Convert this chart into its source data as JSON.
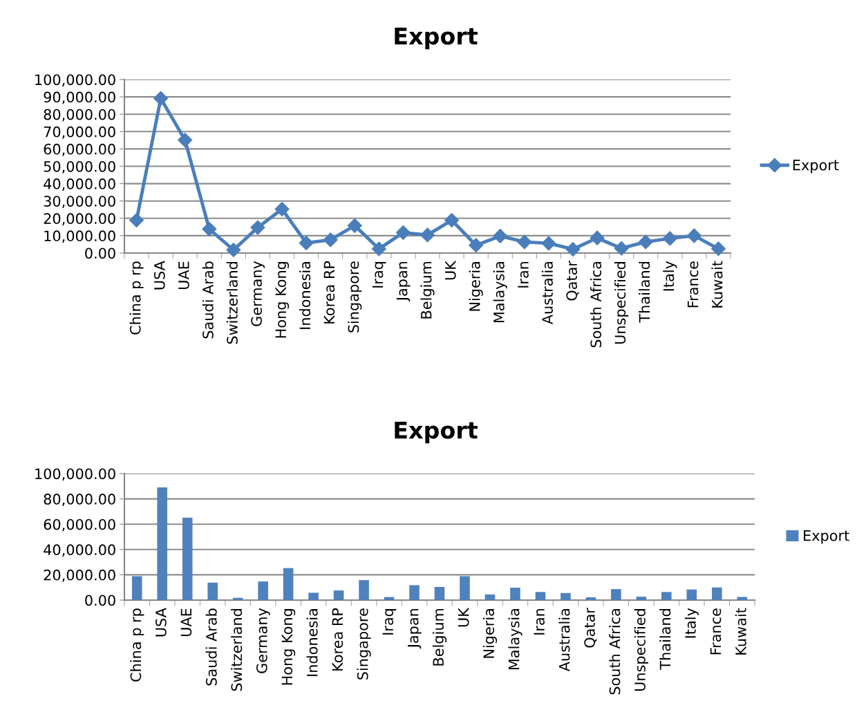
{
  "chart_data": [
    {
      "type": "line",
      "title": "Export",
      "categories": [
        "China p rp",
        "USA",
        "UAE",
        "Saudi Arab",
        "Switzerland",
        "Germany",
        "Hong Kong",
        "Indonesia",
        "Korea RP",
        "Singapore",
        "Iraq",
        "Japan",
        "Belgium",
        "UK",
        "Nigeria",
        "Malaysia",
        "Iran",
        "Australia",
        "Qatar",
        "South Africa",
        "Unspecified",
        "Thailand",
        "Italy",
        "France",
        "Kuwait"
      ],
      "series": [
        {
          "name": "Export",
          "color": "#4a7ebb",
          "values": [
            18900,
            89100,
            65100,
            13800,
            1800,
            14700,
            25300,
            5800,
            7600,
            15800,
            2400,
            11800,
            10400,
            18900,
            4500,
            9800,
            6400,
            5600,
            2200,
            8700,
            2700,
            6400,
            8400,
            10000,
            2500
          ]
        }
      ],
      "ylim": [
        0,
        100000
      ],
      "yticks": [
        {
          "value": 0,
          "label": "0.00"
        },
        {
          "value": 10000,
          "label": "10,000.00"
        },
        {
          "value": 20000,
          "label": "20,000.00"
        },
        {
          "value": 30000,
          "label": "30,000.00"
        },
        {
          "value": 40000,
          "label": "40,000.00"
        },
        {
          "value": 50000,
          "label": "50,000.00"
        },
        {
          "value": 60000,
          "label": "60,000.00"
        },
        {
          "value": 70000,
          "label": "70,000.00"
        },
        {
          "value": 80000,
          "label": "80,000.00"
        },
        {
          "value": 90000,
          "label": "90,000.00"
        },
        {
          "value": 100000,
          "label": "100,000.00"
        }
      ],
      "grid": "y",
      "legend": "right",
      "marker": "diamond",
      "line_style": "solid"
    },
    {
      "type": "bar",
      "title": "Export",
      "categories": [
        "China p rp",
        "USA",
        "UAE",
        "Saudi Arab",
        "Switzerland",
        "Germany",
        "Hong Kong",
        "Indonesia",
        "Korea RP",
        "Singapore",
        "Iraq",
        "Japan",
        "Belgium",
        "UK",
        "Nigeria",
        "Malaysia",
        "Iran",
        "Australia",
        "Qatar",
        "South Africa",
        "Unspecified",
        "Thailand",
        "Italy",
        "France",
        "Kuwait"
      ],
      "series": [
        {
          "name": "Export",
          "color": "#4f81bd",
          "values": [
            18900,
            89100,
            65100,
            13800,
            1800,
            14700,
            25300,
            5800,
            7600,
            15800,
            2400,
            11800,
            10400,
            18900,
            4500,
            9800,
            6400,
            5600,
            2200,
            8700,
            2700,
            6400,
            8400,
            10000,
            2500
          ]
        }
      ],
      "ylim": [
        0,
        100000
      ],
      "yticks": [
        {
          "value": 0,
          "label": "0.00"
        },
        {
          "value": 20000,
          "label": "20,000.00"
        },
        {
          "value": 40000,
          "label": "40,000.00"
        },
        {
          "value": 60000,
          "label": "60,000.00"
        },
        {
          "value": 80000,
          "label": "80,000.00"
        },
        {
          "value": 100000,
          "label": "100,000.00"
        }
      ],
      "grid": "y",
      "legend": "right"
    }
  ]
}
